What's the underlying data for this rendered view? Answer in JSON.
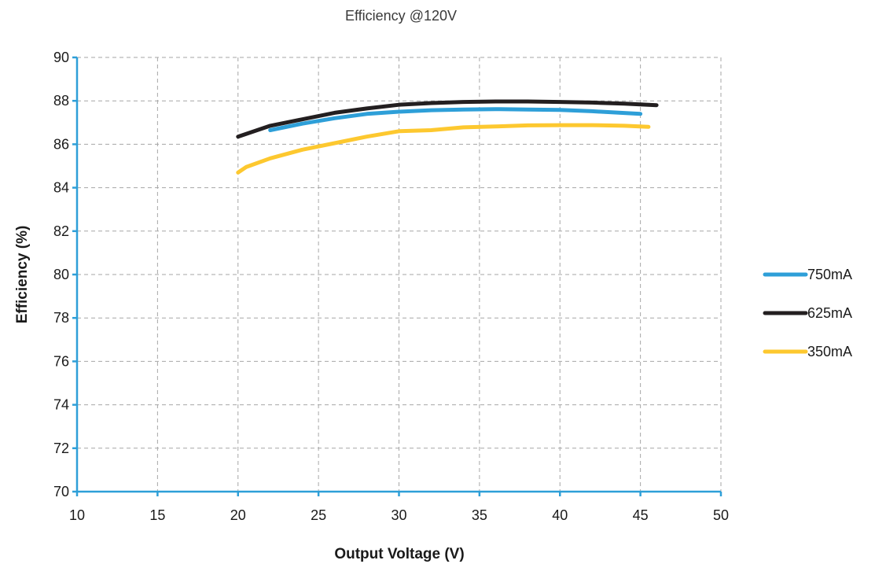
{
  "chart_data": {
    "type": "line",
    "title": "Efficiency @120V",
    "xlabel": "Output Voltage (V)",
    "ylabel": "Efficiency (%)",
    "xlim": [
      10,
      50
    ],
    "ylim": [
      70,
      90
    ],
    "xticks": [
      10,
      15,
      20,
      25,
      30,
      35,
      40,
      45,
      50
    ],
    "yticks": [
      70,
      72,
      74,
      76,
      78,
      80,
      82,
      84,
      86,
      88,
      90
    ],
    "grid": true,
    "legend_position": "right",
    "series": [
      {
        "name": "750mA",
        "color": "#2e9fd8",
        "x": [
          22,
          24,
          26,
          28,
          30,
          32,
          34,
          36,
          38,
          40,
          42,
          45
        ],
        "y": [
          86.65,
          86.95,
          87.2,
          87.4,
          87.5,
          87.57,
          87.6,
          87.62,
          87.6,
          87.58,
          87.52,
          87.4
        ]
      },
      {
        "name": "625mA",
        "color": "#231f20",
        "x": [
          20,
          22,
          24,
          26,
          28,
          30,
          32,
          34,
          36,
          38,
          40,
          42,
          44,
          46
        ],
        "y": [
          86.35,
          86.85,
          87.15,
          87.45,
          87.65,
          87.82,
          87.9,
          87.95,
          87.97,
          87.97,
          87.95,
          87.92,
          87.87,
          87.8
        ]
      },
      {
        "name": "350mA",
        "color": "#fdc82f",
        "x": [
          20,
          20.5,
          22,
          24,
          26,
          28,
          30,
          32,
          34,
          36,
          38,
          40,
          42,
          44,
          45.5
        ],
        "y": [
          84.7,
          84.95,
          85.35,
          85.75,
          86.05,
          86.35,
          86.6,
          86.65,
          86.78,
          86.82,
          86.87,
          86.88,
          86.88,
          86.85,
          86.8
        ]
      }
    ]
  }
}
